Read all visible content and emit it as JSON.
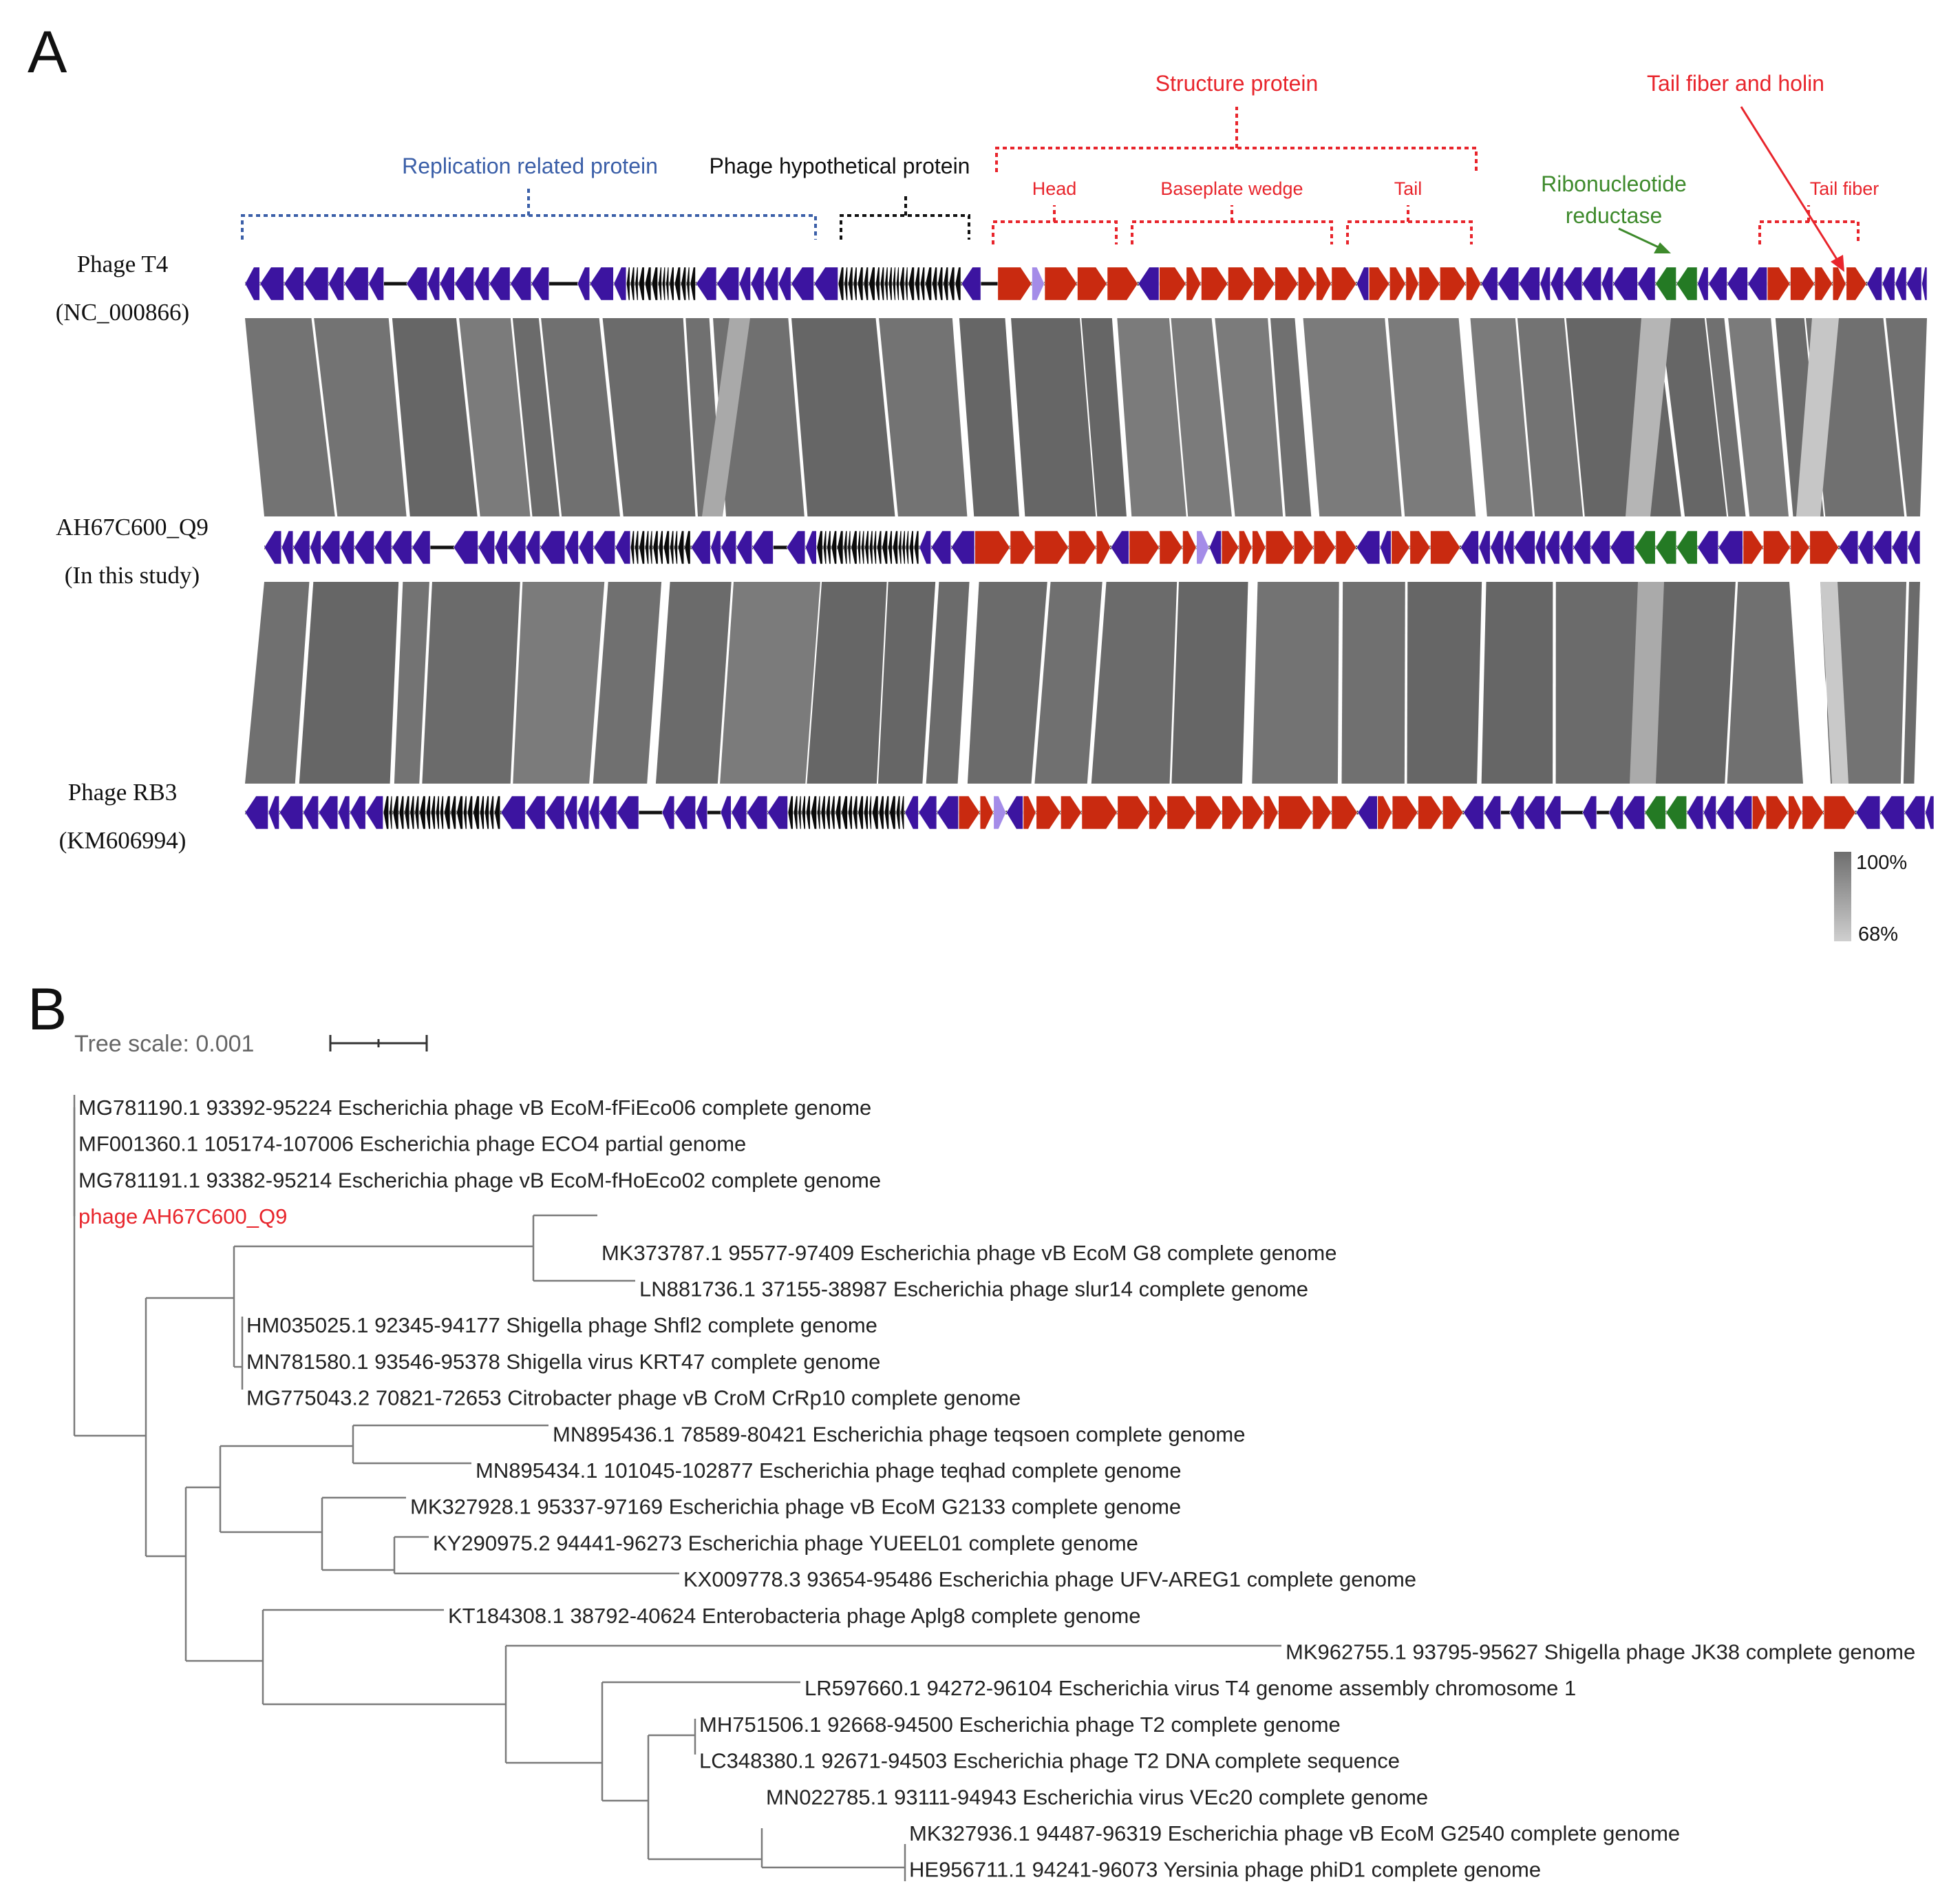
{
  "panels": {
    "a": "A",
    "b": "B"
  },
  "colors": {
    "replication": "#3b5fa8",
    "hypothetical": "#111111",
    "structure": "#e8252c",
    "ribonucleotide": "#3e8a2c",
    "gene_purple": "#3c14a0",
    "gene_black": "#0a0a0a",
    "gene_red": "#c92a10",
    "gene_lavender": "#a48ce8",
    "gene_green": "#247a24",
    "highlight": "#e8252c"
  },
  "panel_a": {
    "categories": {
      "replication": "Replication related protein",
      "hypothetical": "Phage hypothetical protein",
      "structure": "Structure protein",
      "head": "Head",
      "baseplate": "Baseplate wedge",
      "tail": "Tail",
      "ribonucleotide_line1": "Ribonucleotide",
      "ribonucleotide_line2": "reductase",
      "tail_fiber_holin": "Tail fiber and holin",
      "tail_fiber": "Tail fiber"
    },
    "genomes": [
      {
        "name": "Phage T4",
        "accession": "(NC_000866)"
      },
      {
        "name": "AH67C600_Q9",
        "accession": "(In this study)"
      },
      {
        "name": "Phage RB3",
        "accession": "(KM606994)"
      }
    ],
    "identity_scale": {
      "max": "100%",
      "min": "68%"
    }
  },
  "panel_b": {
    "tree_scale_label": "Tree scale: 0.001",
    "leaves": [
      {
        "id": "L1",
        "label": "MG781190.1 93392-95224 Escherichia phage vB EcoM-fFiEco06 complete genome"
      },
      {
        "id": "L2",
        "label": "MF001360.1 105174-107006 Escherichia phage ECO4 partial genome"
      },
      {
        "id": "L3",
        "label": "MG781191.1 93382-95214 Escherichia phage vB EcoM-fHoEco02 complete genome"
      },
      {
        "id": "L4",
        "label": "phage AH67C600_Q9",
        "highlight": true
      },
      {
        "id": "L5",
        "label": "MK373787.1 95577-97409 Escherichia phage vB EcoM G8 complete genome"
      },
      {
        "id": "L6",
        "label": "LN881736.1 37155-38987 Escherichia phage slur14 complete genome"
      },
      {
        "id": "L7",
        "label": "HM035025.1 92345-94177 Shigella phage Shfl2 complete genome"
      },
      {
        "id": "L8",
        "label": "MN781580.1 93546-95378 Shigella virus KRT47 complete genome"
      },
      {
        "id": "L9",
        "label": "MG775043.2 70821-72653 Citrobacter phage vB CroM CrRp10 complete genome"
      },
      {
        "id": "L10",
        "label": "MN895436.1 78589-80421 Escherichia phage teqsoen complete genome"
      },
      {
        "id": "L11",
        "label": "MN895434.1 101045-102877 Escherichia phage teqhad complete genome"
      },
      {
        "id": "L12",
        "label": "MK327928.1 95337-97169 Escherichia phage vB EcoM G2133 complete genome"
      },
      {
        "id": "L13",
        "label": "KY290975.2 94441-96273 Escherichia phage YUEEL01 complete genome"
      },
      {
        "id": "L14",
        "label": "KX009778.3 93654-95486 Escherichia phage UFV-AREG1 complete genome"
      },
      {
        "id": "L15",
        "label": "KT184308.1 38792-40624 Enterobacteria phage Aplg8 complete genome"
      },
      {
        "id": "L16",
        "label": "MK962755.1 93795-95627 Shigella phage JK38 complete genome"
      },
      {
        "id": "L17",
        "label": "LR597660.1 94272-96104 Escherichia virus T4 genome assembly chromosome 1"
      },
      {
        "id": "L18",
        "label": "MH751506.1 92668-94500 Escherichia phage T2 complete genome"
      },
      {
        "id": "L19",
        "label": "LC348380.1 92671-94503 Escherichia phage T2 DNA complete sequence"
      },
      {
        "id": "L20",
        "label": "MN022785.1 93111-94943 Escherichia virus VEc20 complete genome"
      },
      {
        "id": "L21",
        "label": "MK327936.1 94487-96319 Escherichia phage vB EcoM G2540 complete genome"
      },
      {
        "id": "L22",
        "label": "HE956711.1 94241-96073 Yersinia phage phiD1 complete genome"
      }
    ]
  }
}
